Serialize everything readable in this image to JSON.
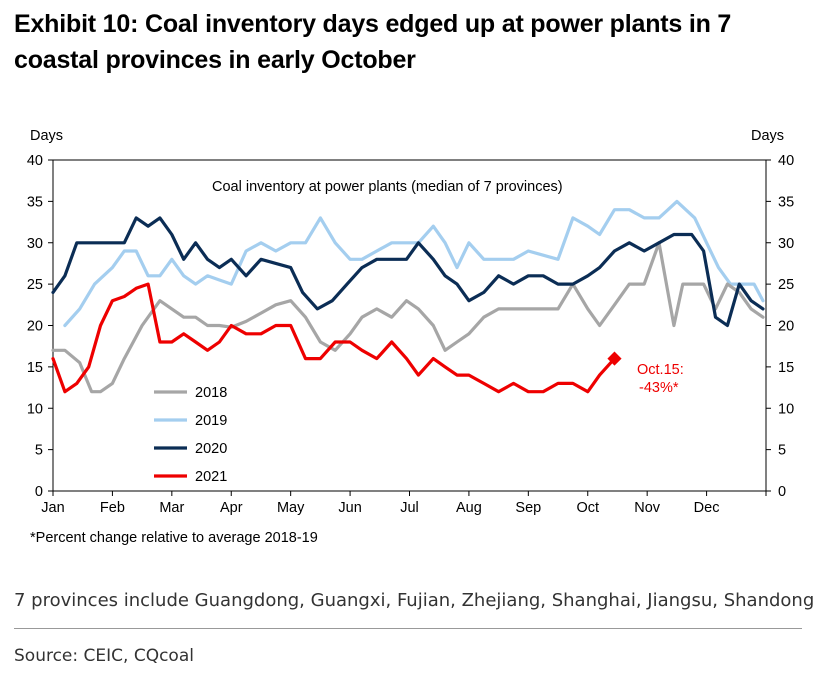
{
  "title": {
    "line1": "Exhibit 10: Coal inventory days edged up at power plants in 7",
    "line2": "coastal provinces in early October"
  },
  "notes": {
    "provinces": "7 provinces include Guangdong, Guangxi, Fujian, Zhejiang, Shanghai, Jiangsu, Shandong",
    "source": "Source: CEIC, CQcoal"
  },
  "chart_data": {
    "type": "line",
    "inner_title": "Coal inventory at power plants (median of 7 provinces)",
    "ylabel_left": "Days",
    "ylabel_right": "Days",
    "ylim": [
      0,
      40
    ],
    "yticks": [
      0,
      5,
      10,
      15,
      20,
      25,
      30,
      35,
      40
    ],
    "xlim": [
      0,
      12
    ],
    "month_labels": [
      "Jan",
      "Feb",
      "Mar",
      "Apr",
      "May",
      "Jun",
      "Jul",
      "Aug",
      "Sep",
      "Oct",
      "Nov",
      "Dec"
    ],
    "footnote": "*Percent change relative to average 2018-19",
    "annotation": {
      "line1": "Oct.15:",
      "line2": "-43%*",
      "x": 9.45,
      "y": 16,
      "color": "#ee0000"
    },
    "series": [
      {
        "name": "2018",
        "color": "#a6a6a6",
        "x": [
          0,
          0.2,
          0.45,
          0.65,
          0.8,
          1.0,
          1.2,
          1.5,
          1.8,
          2.0,
          2.2,
          2.4,
          2.6,
          2.8,
          3.0,
          3.25,
          3.5,
          3.75,
          4.0,
          4.25,
          4.5,
          4.75,
          5.0,
          5.2,
          5.45,
          5.7,
          5.95,
          6.15,
          6.4,
          6.6,
          6.8,
          7.0,
          7.25,
          7.5,
          7.75,
          8.0,
          8.25,
          8.5,
          8.75,
          9.0,
          9.2,
          9.45,
          9.7,
          9.95,
          10.2,
          10.45,
          10.6,
          10.75,
          10.95,
          11.15,
          11.35,
          11.55,
          11.75,
          11.95
        ],
        "y": [
          17,
          17,
          15.5,
          12,
          12,
          13,
          16,
          20,
          23,
          22,
          21,
          21,
          20,
          20,
          19.8,
          20.5,
          21.5,
          22.5,
          23,
          21,
          18,
          17,
          19,
          21,
          22,
          21,
          23,
          22,
          20,
          17,
          18,
          19,
          21,
          22,
          22,
          22,
          22,
          22,
          25,
          22,
          20,
          22.5,
          25,
          25,
          30,
          20,
          25,
          25,
          25,
          22,
          25,
          24,
          22,
          21
        ]
      },
      {
        "name": "2019",
        "color": "#a4ceef",
        "x": [
          0.2,
          0.45,
          0.7,
          1.0,
          1.2,
          1.4,
          1.6,
          1.8,
          2.0,
          2.2,
          2.4,
          2.6,
          2.8,
          3.0,
          3.25,
          3.5,
          3.75,
          4.0,
          4.25,
          4.5,
          4.75,
          5.0,
          5.2,
          5.45,
          5.7,
          5.95,
          6.15,
          6.4,
          6.6,
          6.8,
          7.0,
          7.25,
          7.5,
          7.75,
          8.0,
          8.25,
          8.5,
          8.75,
          9.0,
          9.2,
          9.45,
          9.7,
          9.95,
          10.2,
          10.35,
          10.5,
          10.65,
          10.8,
          11.0,
          11.2,
          11.4,
          11.6,
          11.8,
          11.95
        ],
        "y": [
          20,
          22,
          25,
          27,
          29,
          29,
          26,
          26,
          28,
          26,
          25,
          26,
          25.5,
          25,
          29,
          30,
          29,
          30,
          30,
          33,
          30,
          28,
          28,
          29,
          30,
          30,
          30,
          32,
          30,
          27,
          30,
          28,
          28,
          28,
          29,
          28.5,
          28,
          33,
          32,
          31,
          34,
          34,
          33,
          33,
          34,
          35,
          34,
          33,
          30,
          27,
          25,
          25,
          25,
          23
        ]
      },
      {
        "name": "2020",
        "color": "#0b2d55",
        "x": [
          0,
          0.2,
          0.4,
          0.6,
          0.8,
          1.0,
          1.2,
          1.4,
          1.6,
          1.8,
          2.0,
          2.2,
          2.4,
          2.6,
          2.8,
          3.0,
          3.25,
          3.5,
          3.75,
          4.0,
          4.2,
          4.45,
          4.7,
          4.95,
          5.2,
          5.45,
          5.7,
          5.95,
          6.15,
          6.4,
          6.6,
          6.8,
          7.0,
          7.25,
          7.5,
          7.75,
          8.0,
          8.25,
          8.5,
          8.75,
          9.0,
          9.2,
          9.45,
          9.7,
          9.95,
          10.2,
          10.45,
          10.6,
          10.75,
          10.95,
          11.15,
          11.35,
          11.55,
          11.75,
          11.95
        ],
        "y": [
          24,
          26,
          30,
          30,
          30,
          30,
          30,
          33,
          32,
          33,
          31,
          28,
          30,
          28,
          27,
          28,
          26,
          28,
          27.5,
          27,
          24,
          22,
          23,
          25,
          27,
          28,
          28,
          28,
          30,
          28,
          26,
          25,
          23,
          24,
          26,
          25,
          26,
          26,
          25,
          25,
          26,
          27,
          29,
          30,
          29,
          30,
          31,
          31,
          31,
          29,
          21,
          20,
          25,
          23,
          22
        ]
      },
      {
        "name": "2021",
        "color": "#ee0000",
        "x": [
          0,
          0.2,
          0.4,
          0.6,
          0.8,
          1.0,
          1.2,
          1.4,
          1.6,
          1.8,
          2.0,
          2.2,
          2.4,
          2.6,
          2.8,
          3.0,
          3.25,
          3.5,
          3.75,
          4.0,
          4.25,
          4.5,
          4.75,
          5.0,
          5.2,
          5.45,
          5.7,
          5.95,
          6.15,
          6.4,
          6.6,
          6.8,
          7.0,
          7.25,
          7.5,
          7.75,
          8.0,
          8.25,
          8.5,
          8.75,
          9.0,
          9.2,
          9.45
        ],
        "y": [
          16,
          12,
          13,
          15,
          20,
          23,
          23.5,
          24.5,
          25,
          18,
          18,
          19,
          18,
          17,
          18,
          20,
          19,
          19,
          20,
          20,
          16,
          16,
          18,
          18,
          17,
          16,
          18,
          16,
          14,
          16,
          15,
          14,
          14,
          13,
          12,
          13,
          12,
          12,
          13,
          13,
          12,
          14,
          16
        ]
      }
    ],
    "legend_order": [
      "2018",
      "2019",
      "2020",
      "2021"
    ]
  }
}
